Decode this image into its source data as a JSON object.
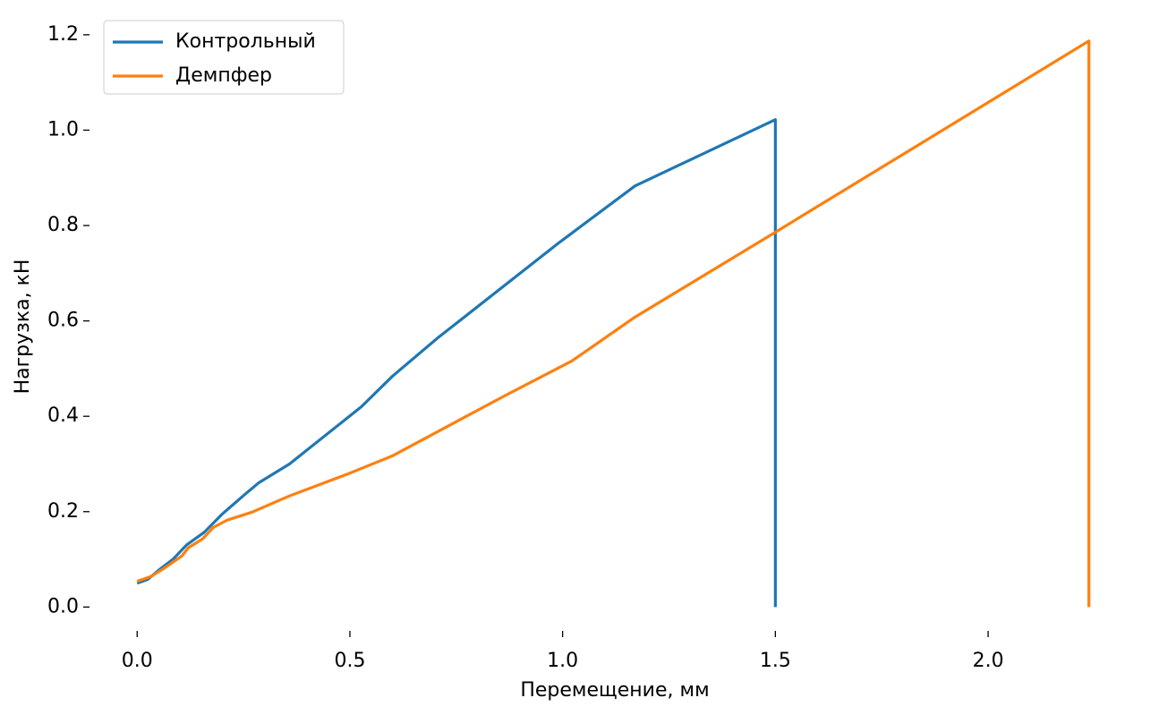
{
  "chart_data": {
    "type": "line",
    "xlabel": "Перемещение, мм",
    "ylabel": "Нагрузка, кН",
    "xlim": [
      -0.112,
      2.349
    ],
    "ylim": [
      -0.05,
      1.226
    ],
    "xticks": [
      {
        "value": 0,
        "label": "0.0"
      },
      0.5,
      {
        "value": 1,
        "label": "1.0"
      },
      1.5,
      {
        "value": 2,
        "label": "2.0"
      }
    ],
    "yticks": [
      {
        "value": 0,
        "label": "0.0"
      },
      0.2,
      0.4,
      0.6,
      0.8,
      {
        "value": 1,
        "label": "1.0"
      },
      1.2
    ],
    "legend": "upper left",
    "series": [
      {
        "name": "Контрольный",
        "color": "#1f77b4",
        "x": [
          0,
          0.025,
          0.053,
          0.084,
          0.116,
          0.158,
          0.2,
          0.253,
          0.285,
          0.358,
          0.527,
          0.6,
          0.706,
          0.99,
          1.17,
          1.5,
          1.5
        ],
        "values": [
          0.05,
          0.058,
          0.079,
          0.1,
          0.13,
          0.157,
          0.195,
          0.236,
          0.26,
          0.3,
          0.42,
          0.484,
          0.564,
          0.763,
          0.883,
          1.022,
          0
        ]
      },
      {
        "name": "Демпфер",
        "color": "#ff7f0e",
        "x": [
          0,
          0.032,
          0.063,
          0.105,
          0.12,
          0.154,
          0.179,
          0.211,
          0.27,
          0.358,
          0.495,
          0.6,
          0.864,
          1.022,
          1.17,
          1.5,
          2.237,
          2.237
        ],
        "values": [
          0.054,
          0.064,
          0.081,
          0.107,
          0.124,
          0.143,
          0.167,
          0.182,
          0.199,
          0.233,
          0.279,
          0.317,
          0.443,
          0.516,
          0.608,
          0.786,
          1.187,
          0
        ]
      }
    ]
  }
}
